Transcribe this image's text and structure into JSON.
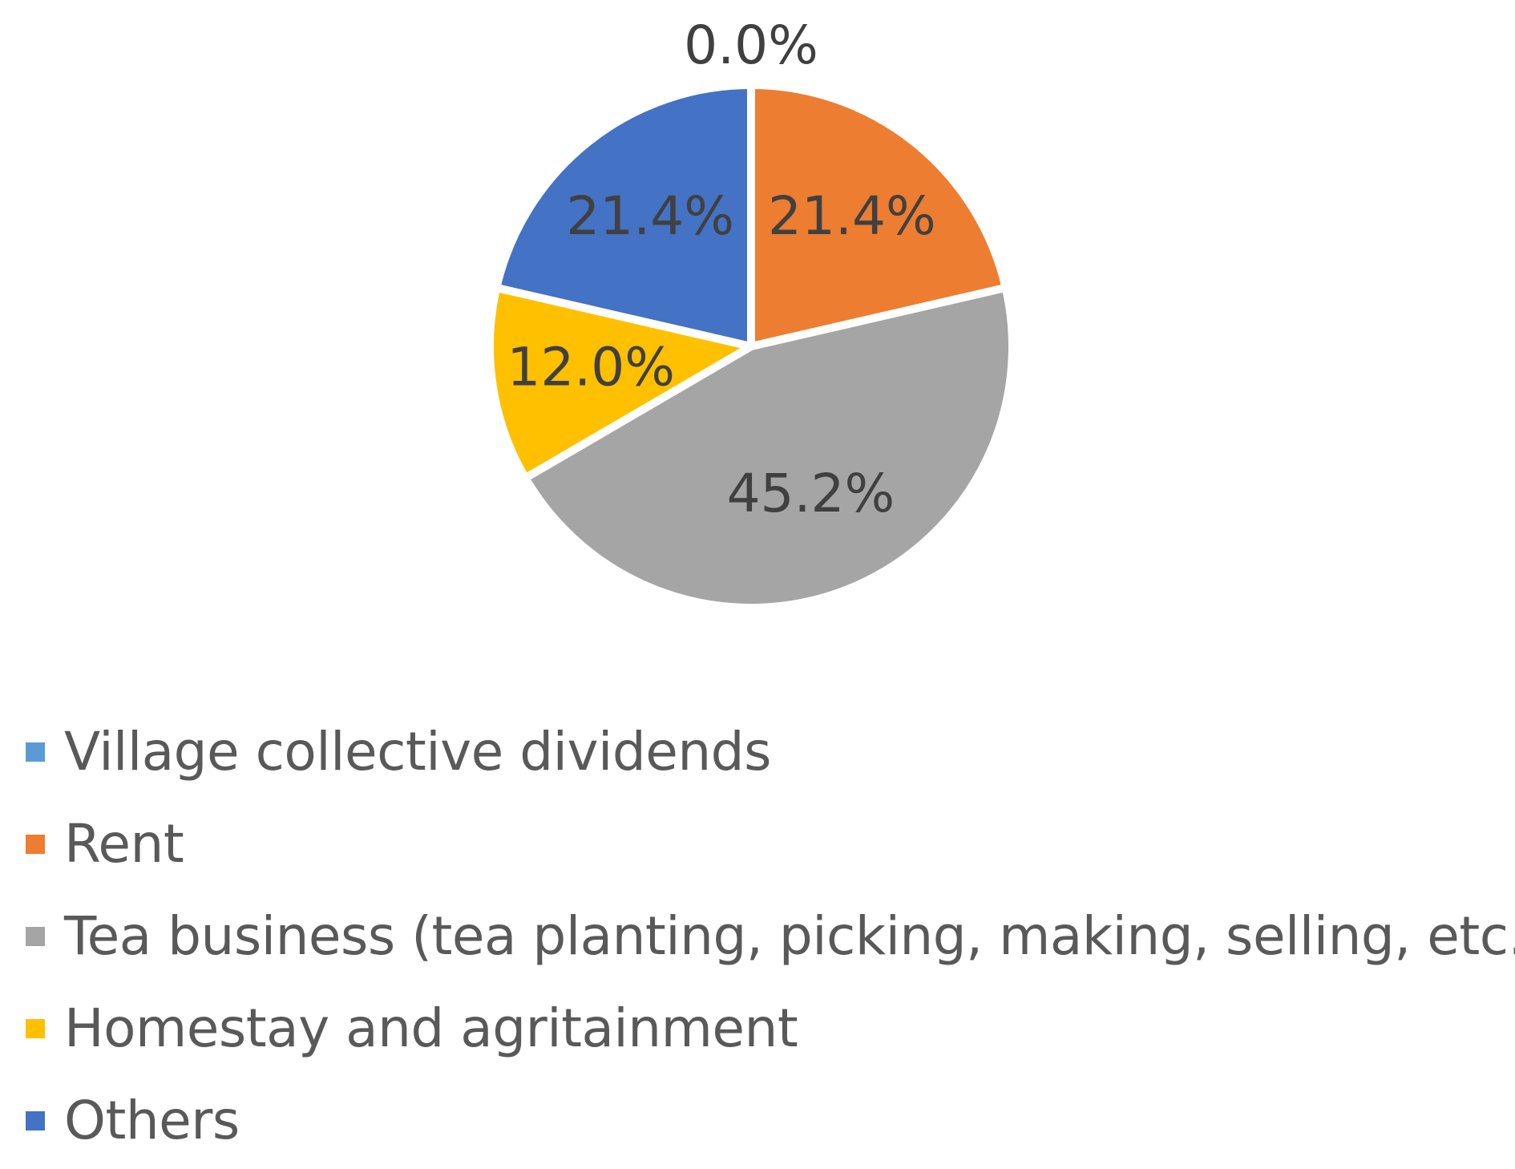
{
  "chart_data": {
    "type": "pie",
    "slices": [
      {
        "name": "Village collective dividends",
        "value": 0.0,
        "label": "0.0%",
        "color": "#5B9BD5"
      },
      {
        "name": "Rent",
        "value": 21.4,
        "label": "21.4%",
        "color": "#ED7D31"
      },
      {
        "name": "Tea business (tea planting, picking, making, selling, etc.)",
        "value": 45.2,
        "label": "45.2%",
        "color": "#A5A5A5"
      },
      {
        "name": "Homestay and agritainment",
        "value": 12.0,
        "label": "12.0%",
        "color": "#FFC000"
      },
      {
        "name": "Others",
        "value": 21.4,
        "label": "21.4%",
        "color": "#4472C4"
      }
    ],
    "legend_position": "bottom"
  }
}
